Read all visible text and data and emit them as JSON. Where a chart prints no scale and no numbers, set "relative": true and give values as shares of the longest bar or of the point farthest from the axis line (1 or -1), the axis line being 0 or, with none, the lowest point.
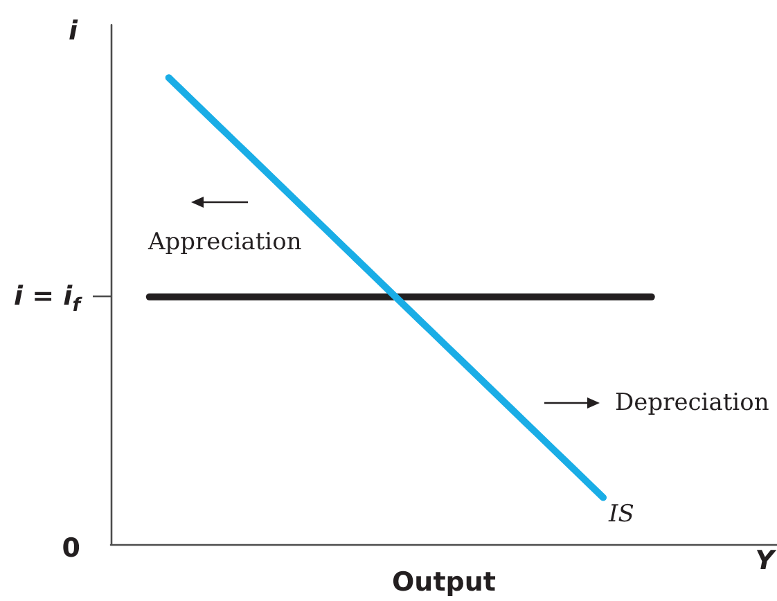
{
  "chart_data": {
    "type": "line",
    "relative": true,
    "ylabel": "i",
    "xlabel": "Output",
    "categories": [
      null,
      null,
      null,
      null,
      null,
      null,
      null,
      null,
      null,
      null,
      null,
      null,
      null,
      null,
      null,
      null,
      null,
      null,
      null,
      null,
      null,
      null,
      null,
      null,
      null,
      null,
      null,
      null,
      null,
      null,
      null,
      null,
      null,
      null,
      null,
      null,
      null,
      null,
      null,
      null,
      null,
      null,
      null,
      null,
      null,
      null,
      null,
      null,
      null,
      null,
      null,
      null,
      null,
      null,
      null,
      null,
      null,
      null,
      null,
      null,
      null,
      null,
      null,
      null,
      null,
      null,
      null,
      null,
      null,
      null
    ],
    "series": [
      {
        "color": "#231f20",
        "values": [
          null,
          null,
          null,
          null,
          0.53,
          0.53,
          0.53,
          0.53,
          0.53,
          0.53,
          0.53,
          0.53,
          0.53,
          0.53,
          0.53,
          0.53,
          0.53,
          0.53,
          0.53,
          0.53,
          0.53,
          0.53,
          0.53,
          0.53,
          0.53,
          0.53,
          0.53,
          0.53,
          0.53,
          0.53,
          0.53,
          0.53,
          0.53,
          0.53,
          0.53,
          0.53,
          0.53,
          0.53,
          0.53,
          0.53,
          0.53,
          0.53,
          0.53,
          0.53,
          0.53,
          0.53,
          0.53,
          0.53,
          0.53,
          0.53,
          0.53,
          0.53,
          0.53,
          0.53,
          0.53,
          0.53,
          0.53,
          null,
          null,
          null,
          null,
          null,
          null,
          null,
          null,
          null,
          null,
          null,
          null,
          null
        ]
      },
      {
        "name": "IS",
        "color": "#1aade6",
        "values": [
          null,
          null,
          null,
          null,
          null,
          null,
          1,
          0.98,
          0.96,
          0.94,
          0.92,
          0.9,
          0.88,
          0.86,
          0.84,
          0.82,
          0.8,
          0.78,
          0.76,
          0.74,
          0.72,
          0.7,
          0.68,
          0.66,
          0.64,
          0.62,
          0.6,
          0.58,
          0.56,
          0.54,
          0.52,
          0.5,
          0.48,
          0.46,
          0.44,
          0.42,
          0.4,
          0.38,
          0.36,
          0.34,
          0.32,
          0.3,
          0.28,
          0.26,
          0.24,
          0.22,
          0.2,
          0.18,
          0.16,
          0.14,
          0.12,
          0.1,
          null,
          null,
          null,
          null,
          null,
          null,
          null,
          null,
          null,
          null,
          null,
          null,
          null,
          null,
          null,
          null,
          null,
          null
        ]
      }
    ],
    "annotations": [
      "i = i$_{f}$",
      "0",
      "Appreciation",
      "Depreciation",
      "Y"
    ]
  }
}
